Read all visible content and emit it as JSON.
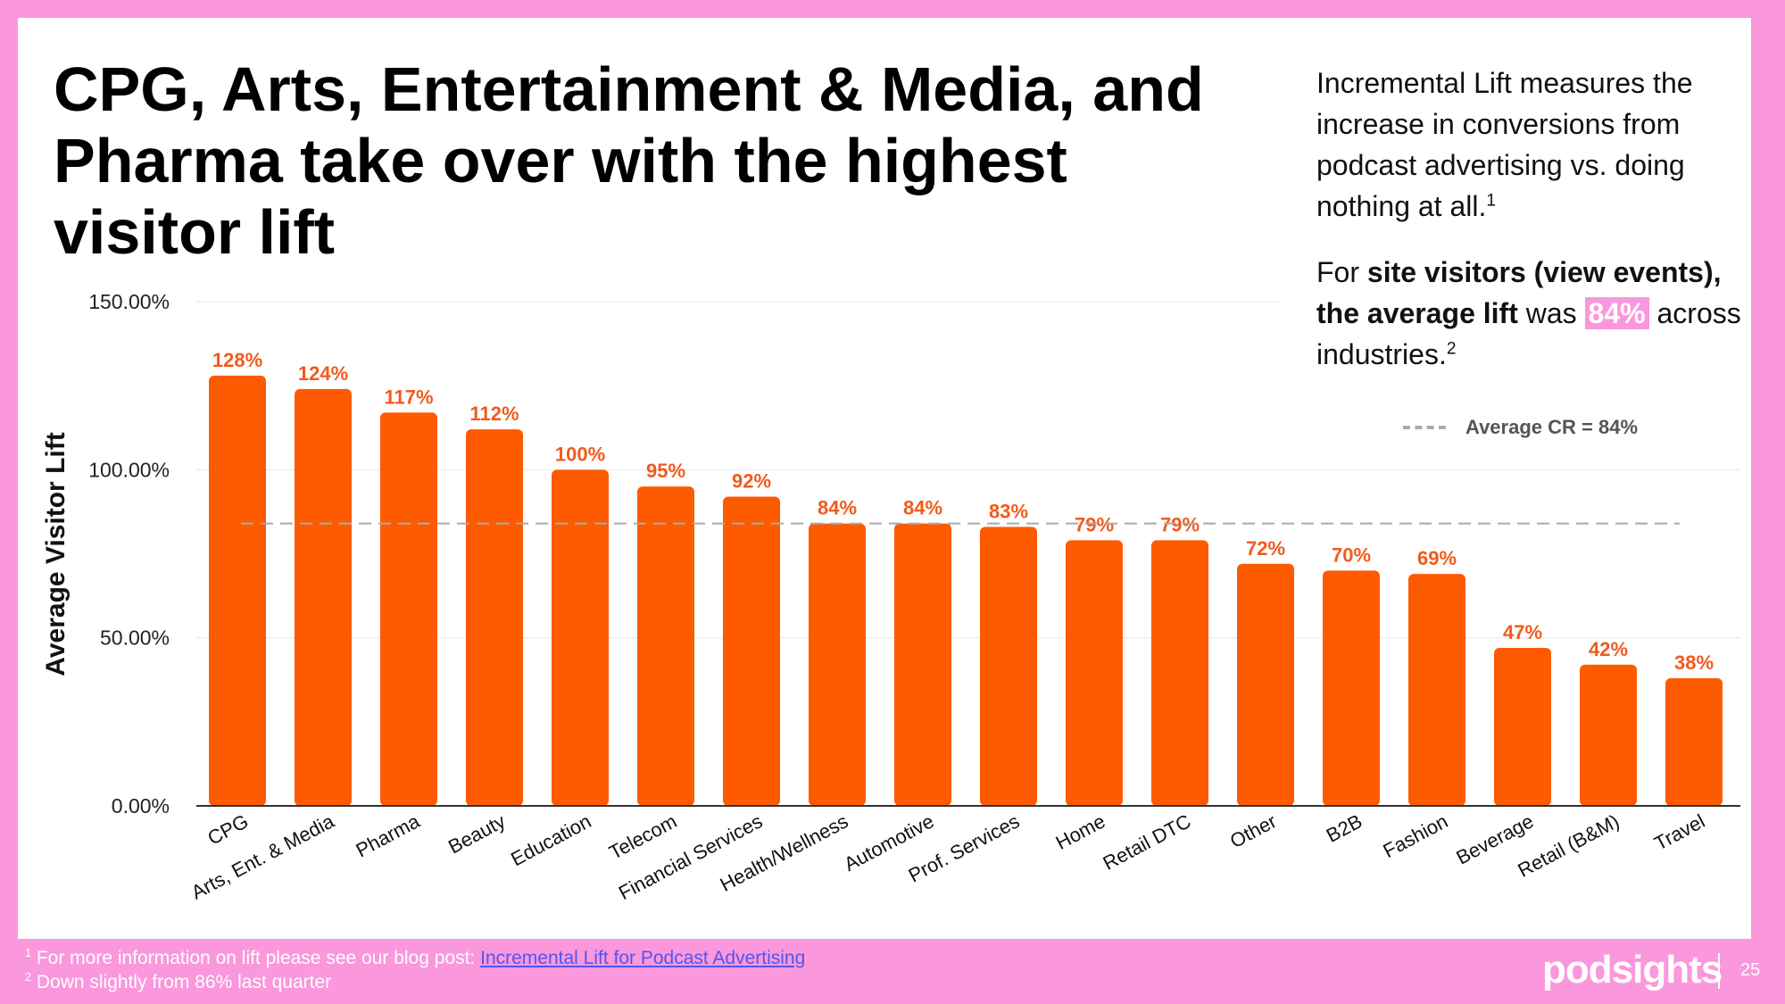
{
  "slide": {
    "title": "CPG, Arts, Entertainment & Media, and Pharma take over with the highest visitor lift",
    "side_text": {
      "p1": "Incremental Lift measures the increase in conversions from podcast advertising vs. doing nothing at all.",
      "p1_sup": "1",
      "p2_prefix": "For ",
      "p2_bold": "site visitors (view events), the average lift",
      "p2_mid": " was ",
      "p2_highlight": "84%",
      "p2_suffix": " across industries.",
      "p2_sup": "2"
    },
    "legend_label": "Average CR = 84%",
    "footnotes": {
      "f1_sup": "1",
      "f1_text": " For more information on lift please see our blog post: ",
      "f1_link": "Incremental Lift for Podcast Advertising",
      "f2_sup": "2",
      "f2_text": " Down slightly from 86% last quarter"
    },
    "brand": "podsights",
    "page_number": "25"
  },
  "colors": {
    "bar": "#fe5a00",
    "label": "#f15a1c",
    "pink": "#fb97dc",
    "avg_line": "#aaaaaa",
    "grid": "#eeeeee"
  },
  "chart_data": {
    "type": "bar",
    "ylabel": "Average Visitor Lift",
    "xlabel": "",
    "ylim": [
      0,
      150
    ],
    "y_ticks": [
      0,
      50,
      100,
      150
    ],
    "y_tick_labels": [
      "0.00%",
      "50.00%",
      "100.00%",
      "150.00%"
    ],
    "average_line": 84,
    "average_label": "Average CR = 84%",
    "categories": [
      "CPG",
      "Arts, Ent. & Media",
      "Pharma",
      "Beauty",
      "Education",
      "Telecom",
      "Financial Services",
      "Health/Wellness",
      "Automotive",
      "Prof. Services",
      "Home",
      "Retail DTC",
      "Other",
      "B2B",
      "Fashion",
      "Beverage",
      "Retail (B&M)",
      "Travel"
    ],
    "values": [
      128,
      124,
      117,
      112,
      100,
      95,
      92,
      84,
      84,
      83,
      79,
      79,
      72,
      70,
      69,
      47,
      42,
      38
    ],
    "data_labels": [
      "128%",
      "124%",
      "117%",
      "112%",
      "100%",
      "95%",
      "92%",
      "84%",
      "84%",
      "83%",
      "79%",
      "79%",
      "72%",
      "70%",
      "69%",
      "47%",
      "42%",
      "38%"
    ]
  }
}
